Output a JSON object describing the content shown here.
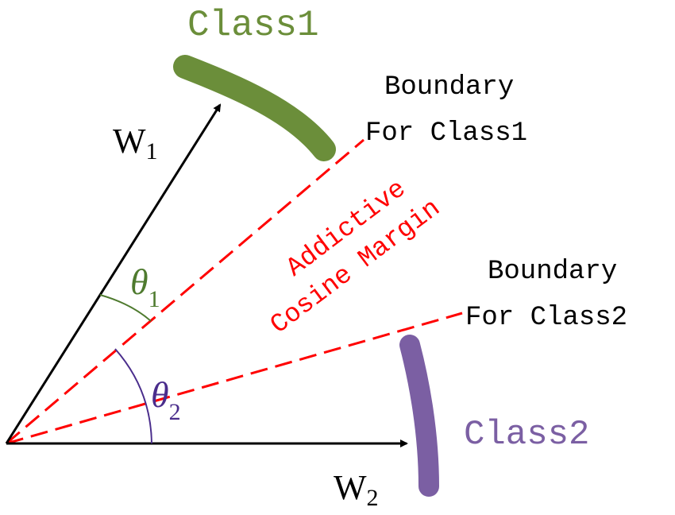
{
  "class1": {
    "label": "Class1",
    "color": "#6b8e3a"
  },
  "class2": {
    "label": "Class2",
    "color": "#7b5fa3"
  },
  "boundary1": {
    "line1": "Boundary",
    "line2": "For Class1"
  },
  "boundary2": {
    "line1": "Boundary",
    "line2": "For Class2"
  },
  "margin": {
    "line1": "Addictive",
    "line2": "Cosine Margin",
    "color": "#ff0000"
  },
  "w1": {
    "base": "W",
    "sub": "1"
  },
  "w2": {
    "base": "W",
    "sub": "2"
  },
  "theta1": {
    "base": "θ",
    "sub": "1",
    "color": "#4e7a2e"
  },
  "theta2": {
    "base": "θ",
    "sub": "2",
    "color": "#4a2d8c"
  }
}
